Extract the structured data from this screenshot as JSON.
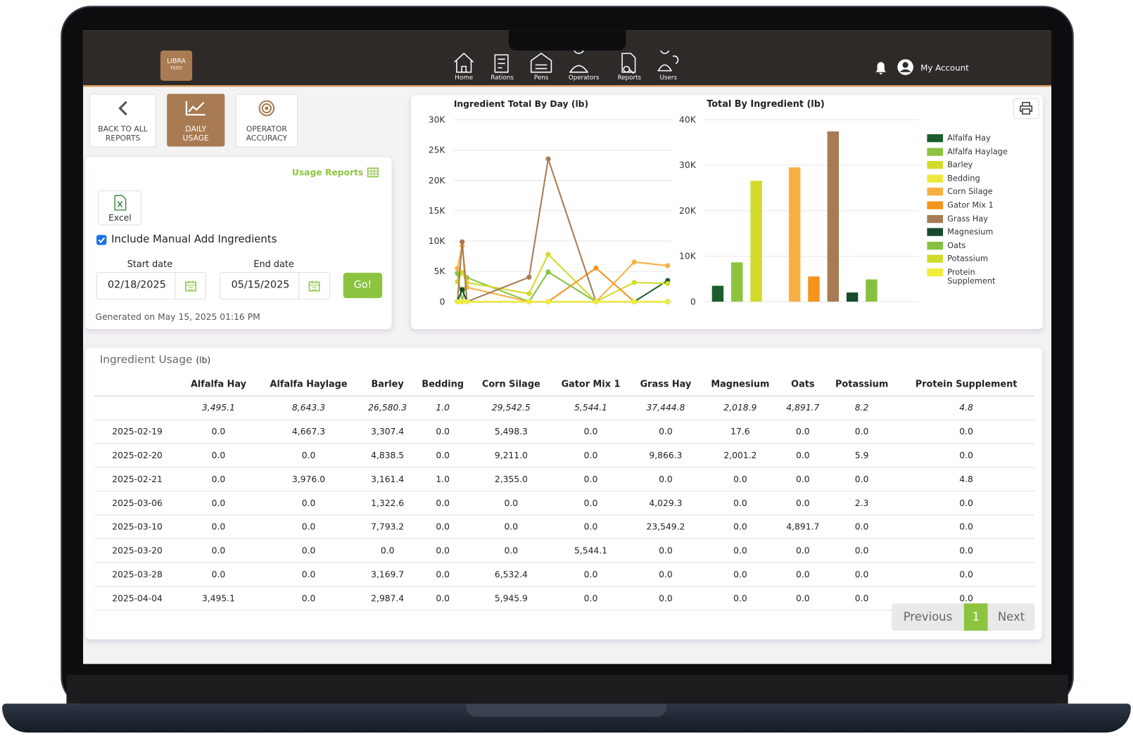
{
  "app": {
    "logo": {
      "line1": "LIBRA",
      "line2": "FEED"
    },
    "nav": [
      "Home",
      "Rations",
      "Pens",
      "Operators",
      "Reports",
      "Users"
    ],
    "account": "My Account"
  },
  "toolbar": [
    "BACK TO ALL REPORTS",
    "DAILY USAGE",
    "OPERATOR ACCURACY"
  ],
  "filters": {
    "link": "Usage Reports",
    "excel": "Excel",
    "include_manual": "Include Manual Add Ingredients",
    "start_label": "Start date",
    "start": "02/18/2025",
    "end_label": "End date",
    "end": "05/15/2025",
    "go": "Go!",
    "generated": "Generated on May 15, 2025 01:16 PM"
  },
  "chart_data": [
    {
      "type": "line",
      "title": "Ingredient Total By Day (lb)",
      "ylim": [
        0,
        30000
      ],
      "grid": true,
      "yticks": [
        0,
        {
          "value": 5000,
          "label": "5K"
        },
        {
          "value": 10000,
          "label": "10K"
        },
        {
          "value": 15000,
          "label": "15K"
        },
        {
          "value": 20000,
          "label": "20K"
        },
        {
          "value": 25000,
          "label": "25K"
        },
        {
          "value": 30000,
          "label": "30K"
        }
      ],
      "series": [
        {
          "color": "#1b5e2b",
          "values": [
            0,
            0,
            0,
            0,
            0,
            0,
            0,
            3495.1
          ]
        },
        {
          "color": "#8cc43f",
          "values": [
            4667.3,
            0,
            3976.0,
            0,
            0,
            0,
            0,
            0
          ]
        },
        {
          "color": "#d2db2a",
          "values": [
            3307.4,
            4838.5,
            3161.4,
            1322.6,
            7793.2,
            0,
            3169.7,
            2987.4
          ]
        },
        {
          "color": "#ece93b",
          "values": [
            0,
            0,
            1.0,
            0,
            0,
            0,
            0,
            0
          ]
        },
        {
          "color": "#f8b044",
          "values": [
            5498.3,
            9211.0,
            2355.0,
            0,
            0,
            0,
            6532.4,
            5945.9
          ]
        },
        {
          "color": "#f6921e",
          "values": [
            0,
            0,
            0,
            0,
            0,
            5544.1,
            0,
            0
          ]
        },
        {
          "color": "#a87b52",
          "values": [
            0,
            9866.3,
            0,
            4029.3,
            23549.2,
            0,
            0,
            0
          ]
        },
        {
          "color": "#184a2c",
          "values": [
            17.6,
            2001.2,
            0,
            0,
            0,
            0,
            0,
            0
          ]
        },
        {
          "color": "#86c041",
          "values": [
            0,
            0,
            0,
            0,
            4891.7,
            0,
            0,
            0
          ]
        },
        {
          "color": "#cfdb2b",
          "values": [
            0,
            5.9,
            0,
            2.3,
            0,
            0,
            0,
            0
          ]
        },
        {
          "color": "#f1ec3c",
          "values": [
            0,
            0,
            4.8,
            0,
            0,
            0,
            0,
            0
          ]
        }
      ]
    },
    {
      "type": "bar",
      "title": "Total By Ingredient (lb)",
      "ylim": [
        0,
        40000
      ],
      "grid": true,
      "legend": "right",
      "yticks": [
        0,
        {
          "value": 10000,
          "label": "10K"
        },
        {
          "value": 20000,
          "label": "20K"
        },
        {
          "value": 30000,
          "label": "30K"
        },
        {
          "value": 40000,
          "label": "40K"
        }
      ],
      "categories": [
        "Alfalfa Hay",
        "Alfalfa Haylage",
        "Barley",
        "Bedding",
        "Corn Silage",
        "Gator Mix 1",
        "Grass Hay",
        "Magnesium",
        "Oats",
        "Potassium",
        "Protein Supplement"
      ],
      "values": [
        3495.1,
        8643.3,
        26580.3,
        1.0,
        29542.5,
        5544.1,
        37444.8,
        2018.9,
        4891.7,
        8.2,
        4.8
      ],
      "colors": [
        "#1b5e2b",
        "#8cc43f",
        "#d2db2a",
        "#ece93b",
        "#f8b044",
        "#f6921e",
        "#a87b52",
        "#184a2c",
        "#86c041",
        "#cfdb2b",
        "#f1ec3c"
      ]
    }
  ],
  "table": {
    "title": "Ingredient Usage",
    "unit": "(lb)",
    "header": [
      "Alfalfa Hay",
      "Alfalfa Haylage",
      "Barley",
      "Bedding",
      "Corn Silage",
      "Gator Mix 1",
      "Grass Hay",
      "Magnesium",
      "Oats",
      "Potassium",
      "Protein Supplement"
    ],
    "totals": [
      "3,495.1",
      "8,643.3",
      "26,580.3",
      "1.0",
      "29,542.5",
      "5,544.1",
      "37,444.8",
      "2,018.9",
      "4,891.7",
      "8.2",
      "4.8"
    ],
    "rows": [
      [
        "2025-02-19",
        "0.0",
        "4,667.3",
        "3,307.4",
        "0.0",
        "5,498.3",
        "0.0",
        "0.0",
        "17.6",
        "0.0",
        "0.0",
        "0.0"
      ],
      [
        "2025-02-20",
        "0.0",
        "0.0",
        "4,838.5",
        "0.0",
        "9,211.0",
        "0.0",
        "9,866.3",
        "2,001.2",
        "0.0",
        "5.9",
        "0.0"
      ],
      [
        "2025-02-21",
        "0.0",
        "3,976.0",
        "3,161.4",
        "1.0",
        "2,355.0",
        "0.0",
        "0.0",
        "0.0",
        "0.0",
        "0.0",
        "4.8"
      ],
      [
        "2025-03-06",
        "0.0",
        "0.0",
        "1,322.6",
        "0.0",
        "0.0",
        "0.0",
        "4,029.3",
        "0.0",
        "0.0",
        "2.3",
        "0.0"
      ],
      [
        "2025-03-10",
        "0.0",
        "0.0",
        "7,793.2",
        "0.0",
        "0.0",
        "0.0",
        "23,549.2",
        "0.0",
        "4,891.7",
        "0.0",
        "0.0"
      ],
      [
        "2025-03-20",
        "0.0",
        "0.0",
        "0.0",
        "0.0",
        "0.0",
        "5,544.1",
        "0.0",
        "0.0",
        "0.0",
        "0.0",
        "0.0"
      ],
      [
        "2025-03-28",
        "0.0",
        "0.0",
        "3,169.7",
        "0.0",
        "6,532.4",
        "0.0",
        "0.0",
        "0.0",
        "0.0",
        "0.0",
        "0.0"
      ],
      [
        "2025-04-04",
        "3,495.1",
        "0.0",
        "2,987.4",
        "0.0",
        "5,945.9",
        "0.0",
        "0.0",
        "0.0",
        "0.0",
        "0.0",
        "0.0"
      ]
    ]
  },
  "pagination": {
    "previous": "Previous",
    "page": "1",
    "next": "Next"
  }
}
